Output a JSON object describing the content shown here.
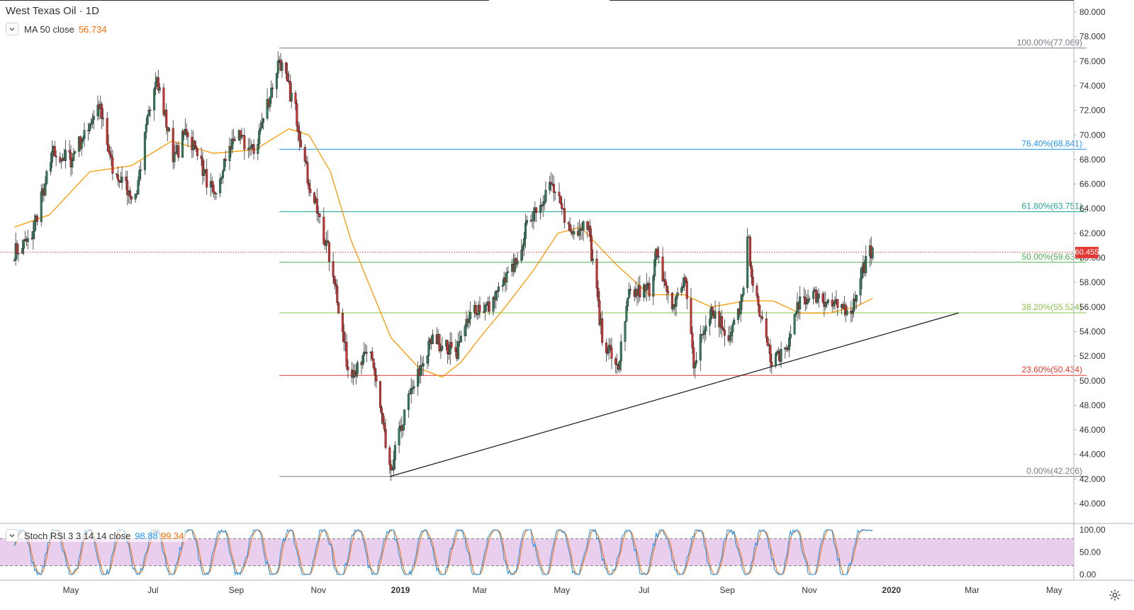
{
  "header": {
    "title": "West Texas Oil · 1D",
    "ma_label": "MA 50 close",
    "ma_value": "56.734",
    "stoch_label": "Stoch RSI 3 3 14 14 close",
    "stoch_k": "98.88",
    "stoch_d": "99.34",
    "last_price": "60.455"
  },
  "colors": {
    "up": "#26a69a",
    "down": "#ef5350",
    "ma": "#ff9800",
    "fib_100": "#787b86",
    "fib_764": "#2196f3",
    "fib_618": "#26a69a",
    "fib_50": "#4caf50",
    "fib_382": "#8bc34a",
    "fib_236": "#e53935",
    "stoch_k": "#2196f3",
    "stoch_d": "#ff6d00",
    "stoch_band": "#e1bee7",
    "price_line": "#e53935"
  },
  "chart_data": {
    "type": "candlestick",
    "symbol": "West Texas Oil",
    "interval": "1D",
    "y_axis_ticks": [
      "80.000",
      "78.000",
      "76.000",
      "74.000",
      "72.000",
      "70.000",
      "68.000",
      "66.000",
      "64.000",
      "62.000",
      "60.000",
      "58.000",
      "56.000",
      "54.000",
      "52.000",
      "50.000",
      "48.000",
      "46.000",
      "44.000",
      "42.000",
      "40.000"
    ],
    "ylim": [
      39,
      81
    ],
    "x_axis_ticks": [
      {
        "label": "May",
        "date": "2018-05-01"
      },
      {
        "label": "Jul",
        "date": "2018-07-01"
      },
      {
        "label": "Sep",
        "date": "2018-09-01"
      },
      {
        "label": "Nov",
        "date": "2018-11-01"
      },
      {
        "label": "2019",
        "date": "2019-01-01"
      },
      {
        "label": "Mar",
        "date": "2019-03-01"
      },
      {
        "label": "May",
        "date": "2019-05-01"
      },
      {
        "label": "Jul",
        "date": "2019-07-01"
      },
      {
        "label": "Sep",
        "date": "2019-09-01"
      },
      {
        "label": "Nov",
        "date": "2019-11-01"
      },
      {
        "label": "2020",
        "date": "2020-01-01"
      },
      {
        "label": "Mar",
        "date": "2020-03-01"
      },
      {
        "label": "May",
        "date": "2020-05-01"
      }
    ],
    "price_path": [
      [
        "2018-03-20",
        60.5
      ],
      [
        "2018-04-01",
        61.5
      ],
      [
        "2018-04-18",
        68.5
      ],
      [
        "2018-05-01",
        68.0
      ],
      [
        "2018-05-22",
        72.5
      ],
      [
        "2018-06-01",
        67.0
      ],
      [
        "2018-06-18",
        65.0
      ],
      [
        "2018-07-03",
        75.0
      ],
      [
        "2018-07-17",
        68.0
      ],
      [
        "2018-07-26",
        70.5
      ],
      [
        "2018-08-15",
        65.0
      ],
      [
        "2018-08-31",
        70.0
      ],
      [
        "2018-09-14",
        68.5
      ],
      [
        "2018-10-03",
        76.2
      ],
      [
        "2018-10-15",
        72.0
      ],
      [
        "2018-10-24",
        66.5
      ],
      [
        "2018-11-12",
        59.0
      ],
      [
        "2018-11-23",
        51.0
      ],
      [
        "2018-11-30",
        50.9
      ],
      [
        "2018-12-10",
        52.5
      ],
      [
        "2018-12-24",
        42.5
      ],
      [
        "2019-01-07",
        48.5
      ],
      [
        "2019-01-25",
        53.5
      ],
      [
        "2019-02-11",
        52.2
      ],
      [
        "2019-02-25",
        56.0
      ],
      [
        "2019-03-08",
        56.0
      ],
      [
        "2019-03-25",
        59.0
      ],
      [
        "2019-04-08",
        63.5
      ],
      [
        "2019-04-23",
        66.0
      ],
      [
        "2019-05-08",
        62.0
      ],
      [
        "2019-05-20",
        63.0
      ],
      [
        "2019-05-31",
        53.5
      ],
      [
        "2019-06-12",
        51.2
      ],
      [
        "2019-06-20",
        57.0
      ],
      [
        "2019-07-05",
        57.5
      ],
      [
        "2019-07-10",
        60.3
      ],
      [
        "2019-07-22",
        56.0
      ],
      [
        "2019-08-01",
        58.0
      ],
      [
        "2019-08-07",
        51.5
      ],
      [
        "2019-08-20",
        56.0
      ],
      [
        "2019-09-03",
        53.5
      ],
      [
        "2019-09-13",
        57.0
      ],
      [
        "2019-09-16",
        62.0
      ],
      [
        "2019-09-20",
        58.0
      ],
      [
        "2019-10-03",
        51.8
      ],
      [
        "2019-10-15",
        52.5
      ],
      [
        "2019-10-25",
        56.5
      ],
      [
        "2019-11-07",
        57.0
      ],
      [
        "2019-11-20",
        56.0
      ],
      [
        "2019-12-03",
        56.0
      ],
      [
        "2019-12-10",
        59.0
      ],
      [
        "2019-12-18",
        60.8
      ]
    ],
    "ma50": {
      "name": "MA 50 close",
      "points": [
        [
          "2018-03-20",
          62.5
        ],
        [
          "2018-04-15",
          63.5
        ],
        [
          "2018-05-15",
          67.0
        ],
        [
          "2018-06-15",
          67.5
        ],
        [
          "2018-07-15",
          69.5
        ],
        [
          "2018-08-15",
          68.5
        ],
        [
          "2018-09-15",
          68.8
        ],
        [
          "2018-10-10",
          70.5
        ],
        [
          "2018-10-25",
          70.0
        ],
        [
          "2018-11-10",
          67.0
        ],
        [
          "2018-11-25",
          61.5
        ],
        [
          "2018-12-10",
          57.5
        ],
        [
          "2018-12-25",
          53.5
        ],
        [
          "2019-01-15",
          51.0
        ],
        [
          "2019-02-01",
          50.3
        ],
        [
          "2019-02-15",
          51.5
        ],
        [
          "2019-03-01",
          53.5
        ],
        [
          "2019-03-20",
          56.0
        ],
        [
          "2019-04-10",
          59.0
        ],
        [
          "2019-04-28",
          62.0
        ],
        [
          "2019-05-15",
          62.5
        ],
        [
          "2019-06-10",
          59.5
        ],
        [
          "2019-07-05",
          57.0
        ],
        [
          "2019-07-31",
          57.0
        ],
        [
          "2019-08-20",
          56.0
        ],
        [
          "2019-09-15",
          56.5
        ],
        [
          "2019-10-05",
          56.5
        ],
        [
          "2019-10-25",
          55.5
        ],
        [
          "2019-11-15",
          55.5
        ],
        [
          "2019-12-05",
          56.0
        ],
        [
          "2019-12-18",
          56.7
        ]
      ]
    },
    "fibonacci": {
      "start_date": "2018-10-03",
      "end_date": "2020-05-25",
      "levels": [
        {
          "label": "100.00%(77.069)",
          "value": 77.069,
          "color": "#787b86"
        },
        {
          "label": "76.40%(68.841)",
          "value": 68.841,
          "color": "#2196f3"
        },
        {
          "label": "61.80%(63.751)",
          "value": 63.751,
          "color": "#26a69a"
        },
        {
          "label": "50.00%(59.638)",
          "value": 59.638,
          "color": "#4caf50"
        },
        {
          "label": "38.20%(55.524)",
          "value": 55.524,
          "color": "#8bc34a"
        },
        {
          "label": "23.60%(50.434)",
          "value": 50.434,
          "color": "#e53935"
        },
        {
          "label": "0.00%(42.206)",
          "value": 42.206,
          "color": "#787b86"
        }
      ]
    },
    "trendline": {
      "from": [
        "2018-12-24",
        42.2
      ],
      "to": [
        "2020-02-20",
        55.52
      ]
    },
    "last_price_line": 60.455,
    "stoch_rsi": {
      "name": "Stoch RSI 3 3 14 14 close",
      "y_ticks": [
        "100.00",
        "50.00",
        "0.00"
      ],
      "ylim": [
        0,
        100
      ],
      "upper_band": 80,
      "lower_band": 20,
      "k_last": 98.88,
      "d_last": 99.34
    }
  }
}
